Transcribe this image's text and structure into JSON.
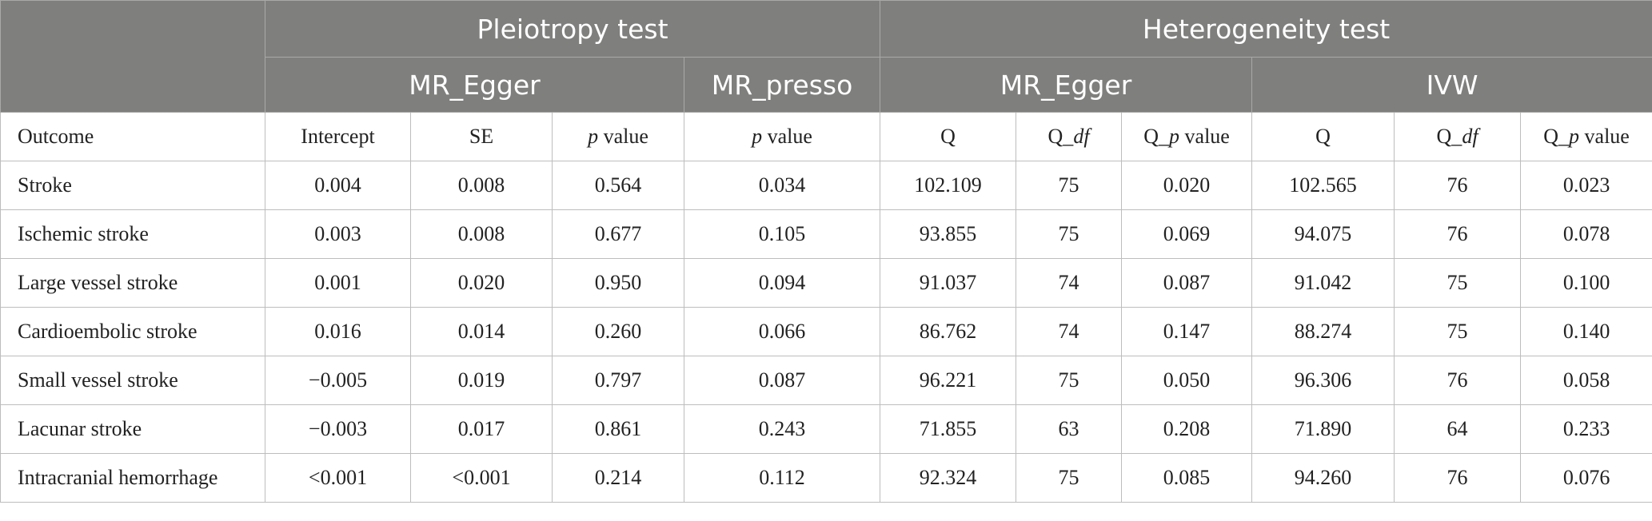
{
  "header": {
    "groups": [
      "Pleiotropy test",
      "Heterogeneity test"
    ],
    "subgroups": [
      "MR_Egger",
      "MR_presso",
      "MR_Egger",
      "IVW"
    ]
  },
  "columns": [
    [
      {
        "text": "Outcome"
      }
    ],
    [
      {
        "text": "Intercept"
      }
    ],
    [
      {
        "text": "SE"
      }
    ],
    [
      {
        "text": "p",
        "italic": true
      },
      {
        "text": " value"
      }
    ],
    [
      {
        "text": "p",
        "italic": true
      },
      {
        "text": " value"
      }
    ],
    [
      {
        "text": "Q"
      }
    ],
    [
      {
        "text": "Q_"
      },
      {
        "text": "df",
        "italic": true
      }
    ],
    [
      {
        "text": "Q_"
      },
      {
        "text": "p",
        "italic": true
      },
      {
        "text": " value"
      }
    ],
    [
      {
        "text": "Q"
      }
    ],
    [
      {
        "text": "Q_"
      },
      {
        "text": "df",
        "italic": true
      }
    ],
    [
      {
        "text": "Q_"
      },
      {
        "text": "p",
        "italic": true
      },
      {
        "text": " value"
      }
    ]
  ],
  "rows": [
    [
      "Stroke",
      "0.004",
      "0.008",
      "0.564",
      "0.034",
      "102.109",
      "75",
      "0.020",
      "102.565",
      "76",
      "0.023"
    ],
    [
      "Ischemic stroke",
      "0.003",
      "0.008",
      "0.677",
      "0.105",
      "93.855",
      "75",
      "0.069",
      "94.075",
      "76",
      "0.078"
    ],
    [
      "Large vessel stroke",
      "0.001",
      "0.020",
      "0.950",
      "0.094",
      "91.037",
      "74",
      "0.087",
      "91.042",
      "75",
      "0.100"
    ],
    [
      "Cardioembolic stroke",
      "0.016",
      "0.014",
      "0.260",
      "0.066",
      "86.762",
      "74",
      "0.147",
      "88.274",
      "75",
      "0.140"
    ],
    [
      "Small vessel stroke",
      "−0.005",
      "0.019",
      "0.797",
      "0.087",
      "96.221",
      "75",
      "0.050",
      "96.306",
      "76",
      "0.058"
    ],
    [
      "Lacunar stroke",
      "−0.003",
      "0.017",
      "0.861",
      "0.243",
      "71.855",
      "63",
      "0.208",
      "71.890",
      "64",
      "0.233"
    ],
    [
      "Intracranial hemorrhage",
      "<0.001",
      "<0.001",
      "0.214",
      "0.112",
      "92.324",
      "75",
      "0.085",
      "94.260",
      "76",
      "0.076"
    ]
  ]
}
